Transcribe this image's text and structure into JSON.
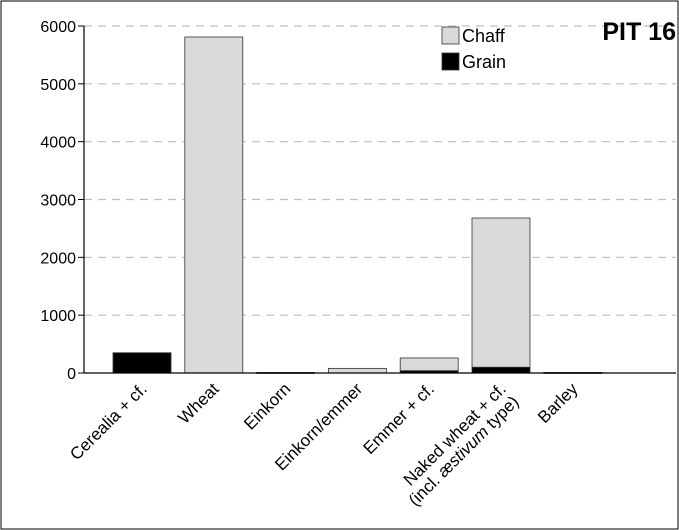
{
  "chart_data": {
    "type": "bar",
    "stacked": true,
    "title": "PIT 16",
    "xlabel": "",
    "ylabel": "",
    "ylim": [
      0,
      6000
    ],
    "yticks": [
      0,
      1000,
      2000,
      3000,
      4000,
      5000,
      6000
    ],
    "grid": "horizontal-dashed",
    "legend_position": "top-right",
    "categories": [
      "Cerealia + cf.",
      "Wheat",
      "Einkorn",
      "Einkorn/emmer",
      "Emmer + cf.",
      "Naked wheat + cf. (incl. æstivum type)",
      "Barley"
    ],
    "category_lines": [
      [
        "Cerealia + cf."
      ],
      [
        "Wheat"
      ],
      [
        "Einkorn"
      ],
      [
        "Einkorn/emmer"
      ],
      [
        "Emmer + cf."
      ],
      [
        "Naked wheat + cf.",
        "(incl. ",
        "æstivum",
        " type)"
      ],
      [
        "Barley"
      ]
    ],
    "series": [
      {
        "name": "Grain",
        "color": "#000000",
        "values": [
          350,
          0,
          0,
          0,
          40,
          100,
          0
        ]
      },
      {
        "name": "Chaff",
        "color": "#d9d9d9",
        "values": [
          0,
          5810,
          10,
          80,
          220,
          2580,
          10
        ]
      }
    ]
  }
}
